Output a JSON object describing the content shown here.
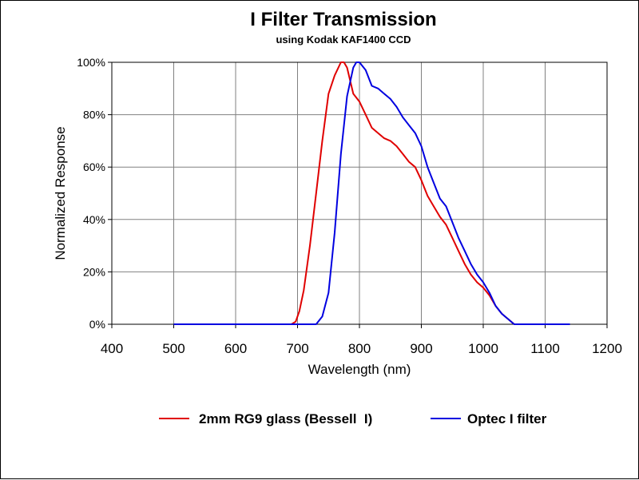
{
  "chart_data": {
    "type": "line",
    "title": "I Filter Transmission",
    "subtitle": "using Kodak KAF1400 CCD",
    "xlabel": "Wavelength (nm)",
    "ylabel": "Normalized Response",
    "xlim": [
      400,
      1200
    ],
    "ylim": [
      0,
      100
    ],
    "x_ticks": [
      400,
      500,
      600,
      700,
      800,
      900,
      1000,
      1100,
      1200
    ],
    "x_tick_labels": [
      "400",
      "500",
      "600",
      "700",
      "800",
      "900",
      "1000",
      "1100",
      "1200"
    ],
    "y_ticks": [
      0,
      20,
      40,
      60,
      80,
      100
    ],
    "y_tick_labels": [
      "0%",
      "20%",
      "40%",
      "60%",
      "80%",
      "100%"
    ],
    "grid": true,
    "legend_position": "bottom",
    "series": [
      {
        "name": "2mm RG9 glass (Bessell  I)",
        "color": "#e00000",
        "points": [
          [
            500,
            0
          ],
          [
            600,
            0
          ],
          [
            690,
            0
          ],
          [
            697,
            1
          ],
          [
            703,
            5
          ],
          [
            710,
            13
          ],
          [
            720,
            30
          ],
          [
            730,
            50
          ],
          [
            740,
            70
          ],
          [
            750,
            88
          ],
          [
            760,
            95
          ],
          [
            770,
            100
          ],
          [
            775,
            100
          ],
          [
            780,
            98
          ],
          [
            790,
            88
          ],
          [
            800,
            85
          ],
          [
            810,
            80
          ],
          [
            820,
            75
          ],
          [
            830,
            73
          ],
          [
            840,
            71
          ],
          [
            850,
            70
          ],
          [
            860,
            68
          ],
          [
            870,
            65
          ],
          [
            880,
            62
          ],
          [
            890,
            60
          ],
          [
            900,
            55
          ],
          [
            910,
            49
          ],
          [
            920,
            45
          ],
          [
            930,
            41
          ],
          [
            940,
            38
          ],
          [
            950,
            33
          ],
          [
            960,
            28
          ],
          [
            970,
            23
          ],
          [
            980,
            19
          ],
          [
            990,
            16
          ],
          [
            1000,
            14
          ],
          [
            1010,
            11
          ],
          [
            1020,
            7
          ],
          [
            1030,
            4
          ],
          [
            1040,
            2
          ],
          [
            1050,
            0
          ],
          [
            1100,
            0
          ],
          [
            1140,
            0
          ]
        ]
      },
      {
        "name": "Optec I filter",
        "color": "#0000e0",
        "points": [
          [
            500,
            0
          ],
          [
            600,
            0
          ],
          [
            700,
            0
          ],
          [
            730,
            0
          ],
          [
            740,
            3
          ],
          [
            750,
            12
          ],
          [
            760,
            35
          ],
          [
            770,
            65
          ],
          [
            780,
            87
          ],
          [
            790,
            98
          ],
          [
            795,
            100
          ],
          [
            800,
            100
          ],
          [
            810,
            97
          ],
          [
            820,
            91
          ],
          [
            830,
            90
          ],
          [
            840,
            88
          ],
          [
            850,
            86
          ],
          [
            860,
            83
          ],
          [
            870,
            79
          ],
          [
            880,
            76
          ],
          [
            890,
            73
          ],
          [
            900,
            68
          ],
          [
            910,
            60
          ],
          [
            920,
            54
          ],
          [
            930,
            48
          ],
          [
            940,
            45
          ],
          [
            950,
            39
          ],
          [
            960,
            33
          ],
          [
            970,
            28
          ],
          [
            980,
            23
          ],
          [
            990,
            19
          ],
          [
            1000,
            16
          ],
          [
            1010,
            12
          ],
          [
            1020,
            7
          ],
          [
            1030,
            4
          ],
          [
            1040,
            2
          ],
          [
            1050,
            0
          ],
          [
            1100,
            0
          ],
          [
            1140,
            0
          ]
        ]
      }
    ]
  }
}
